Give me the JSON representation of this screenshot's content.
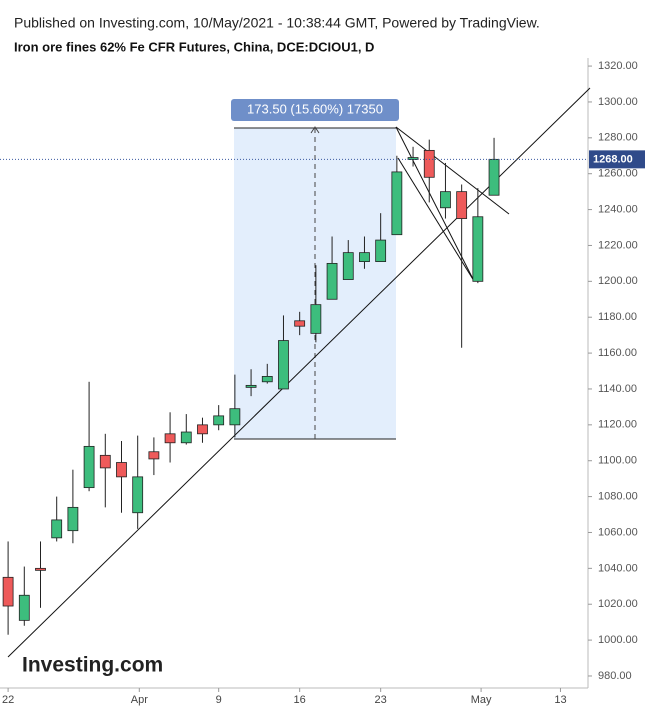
{
  "header": "Published on Investing.com, 10/May/2021 - 10:38:44 GMT, Powered by TradingView.",
  "logo": "Investing.com",
  "chart_data": {
    "type": "candlestick",
    "title": "Iron ore fines 62% Fe CFR Futures, China, DCE:DCIOU1, D",
    "up_color": "#3dbd7d",
    "down_color": "#ee5a5a",
    "open": [
      1035,
      1011,
      1040,
      1057,
      1061,
      1085,
      1103,
      1099,
      1071,
      1105,
      1115,
      1110,
      1120,
      1120,
      1120,
      1141,
      1144,
      1140,
      1178,
      1171,
      1190,
      1201,
      1211,
      1211,
      1226,
      1268,
      1273,
      1241,
      1250,
      1200,
      1248
    ],
    "high": [
      1055,
      1041,
      1055,
      1080,
      1095,
      1144,
      1115,
      1111,
      1114,
      1113,
      1127,
      1126,
      1124,
      1131,
      1148,
      1151,
      1154,
      1181,
      1183,
      1209,
      1225,
      1223,
      1225,
      1238,
      1270,
      1275,
      1279,
      1266,
      1254,
      1252,
      1280
    ],
    "low": [
      1003,
      1008,
      1018,
      1055,
      1054,
      1083,
      1074,
      1071,
      1062,
      1092,
      1099,
      1109,
      1110,
      1117,
      1113,
      1136,
      1143,
      1140,
      1170,
      1166,
      1190,
      1201,
      1207,
      1211,
      1226,
      1264,
      1244,
      1235,
      1163,
      1199,
      1248
    ],
    "close": [
      1019,
      1025,
      1039,
      1067,
      1074,
      1108,
      1096,
      1091,
      1091,
      1101,
      1110,
      1116,
      1115,
      1125,
      1129,
      1142,
      1147,
      1167,
      1175,
      1187,
      1210,
      1216,
      1216,
      1223,
      1261,
      1269,
      1258,
      1250,
      1235,
      1236,
      1268
    ],
    "xlim": [
      -0.5,
      35.8
    ],
    "xticks": [
      {
        "value": 0,
        "label": "22"
      },
      {
        "value": 8.1,
        "label": "Apr"
      },
      {
        "value": 13,
        "label": "9"
      },
      {
        "value": 18,
        "label": "16"
      },
      {
        "value": 23,
        "label": "23"
      },
      {
        "value": 29.2,
        "label": "May"
      },
      {
        "value": 34.1,
        "label": "13"
      }
    ],
    "ylim": [
      973.3,
      1324.5
    ],
    "yticks": [
      {
        "value": 980,
        "label": "980.00"
      },
      {
        "value": 1000,
        "label": "1000.00"
      },
      {
        "value": 1020,
        "label": "1020.00"
      },
      {
        "value": 1040,
        "label": "1040.00"
      },
      {
        "value": 1060,
        "label": "1060.00"
      },
      {
        "value": 1080,
        "label": "1080.00"
      },
      {
        "value": 1100,
        "label": "1100.00"
      },
      {
        "value": 1120,
        "label": "1120.00"
      },
      {
        "value": 1140,
        "label": "1140.00"
      },
      {
        "value": 1160,
        "label": "1160.00"
      },
      {
        "value": 1180,
        "label": "1180.00"
      },
      {
        "value": 1200,
        "label": "1200.00"
      },
      {
        "value": 1220,
        "label": "1220.00"
      },
      {
        "value": 1240,
        "label": "1240.00"
      },
      {
        "value": 1260,
        "label": "1260.00"
      },
      {
        "value": 1280,
        "label": "1280.00"
      },
      {
        "value": 1300,
        "label": "1300.00"
      },
      {
        "value": 1320,
        "label": "1320.00"
      }
    ],
    "last_price": {
      "value": 1268,
      "label": "1268.00"
    },
    "measure_label": "173.50 (15.60%) 17350"
  }
}
